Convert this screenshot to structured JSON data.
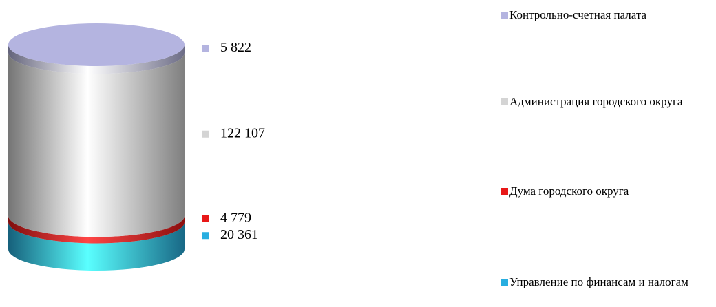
{
  "chart_data": {
    "type": "bar",
    "stacked": true,
    "series": [
      {
        "name": "Контрольно-счетная палата",
        "color": "#b4b4e0",
        "values": [
          5822
        ],
        "value_labels": [
          "5 822"
        ]
      },
      {
        "name": "Администрация городского округа",
        "color": "#d4d4d4",
        "values": [
          122107
        ],
        "value_labels": [
          "122 107"
        ]
      },
      {
        "name": "Дума городского округа",
        "color": "#e81818",
        "values": [
          4779
        ],
        "value_labels": [
          "4 779"
        ]
      },
      {
        "name": "Управление по финансам и налогам",
        "color": "#28aee0",
        "values": [
          20361
        ],
        "value_labels": [
          "20 361"
        ]
      }
    ]
  }
}
